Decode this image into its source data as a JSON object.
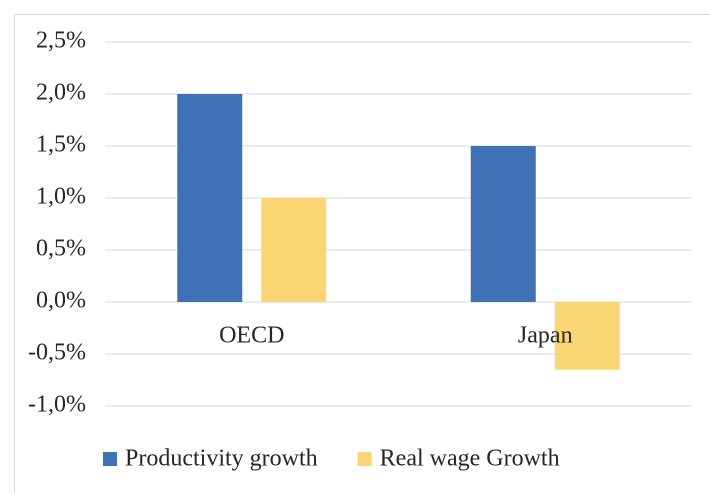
{
  "chart_data": {
    "type": "bar",
    "categories": [
      "OECD",
      "Japan"
    ],
    "series": [
      {
        "name": "Productivity growth",
        "color": "#3f72b4",
        "values": [
          2.0,
          1.5
        ]
      },
      {
        "name": "Real wage Growth",
        "color": "#f9d673",
        "values": [
          1.0,
          -0.65
        ]
      }
    ],
    "ylim": [
      -1.0,
      2.5
    ],
    "yticks": [
      {
        "value": -1.0,
        "label": "-1,0%"
      },
      {
        "value": -0.5,
        "label": "-0,5%"
      },
      {
        "value": 0,
        "label": "0,0%"
      },
      {
        "value": 0.5,
        "label": "0,5%"
      },
      {
        "value": 1.0,
        "label": "1,0%"
      },
      {
        "value": 1.5,
        "label": "1,5%"
      },
      {
        "value": 2.0,
        "label": "2,0%"
      },
      {
        "value": 2.5,
        "label": "2,5%"
      }
    ],
    "grid": true,
    "legend": "bottom"
  }
}
